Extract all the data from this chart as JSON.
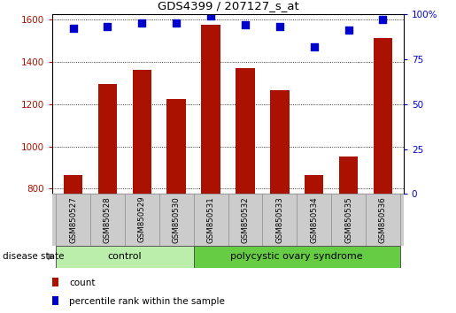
{
  "title": "GDS4399 / 207127_s_at",
  "samples": [
    "GSM850527",
    "GSM850528",
    "GSM850529",
    "GSM850530",
    "GSM850531",
    "GSM850532",
    "GSM850533",
    "GSM850534",
    "GSM850535",
    "GSM850536"
  ],
  "counts": [
    863,
    1295,
    1360,
    1225,
    1575,
    1370,
    1265,
    863,
    953,
    1510
  ],
  "percentiles": [
    92,
    93,
    95,
    95,
    99,
    94,
    93,
    82,
    91,
    97
  ],
  "ylim_left": [
    775,
    1625
  ],
  "ylim_right": [
    0,
    100
  ],
  "yticks_left": [
    800,
    1000,
    1200,
    1400,
    1600
  ],
  "yticks_right": [
    0,
    25,
    50,
    75,
    100
  ],
  "bar_color": "#aa1100",
  "dot_color": "#0000cc",
  "control_color": "#bbeeaa",
  "pcos_color": "#66cc44",
  "bg_color": "#cccccc",
  "control_count": 4,
  "control_label": "control",
  "pcos_label": "polycystic ovary syndrome",
  "disease_state_label": "disease state",
  "legend_count_label": "count",
  "legend_pct_label": "percentile rank within the sample"
}
